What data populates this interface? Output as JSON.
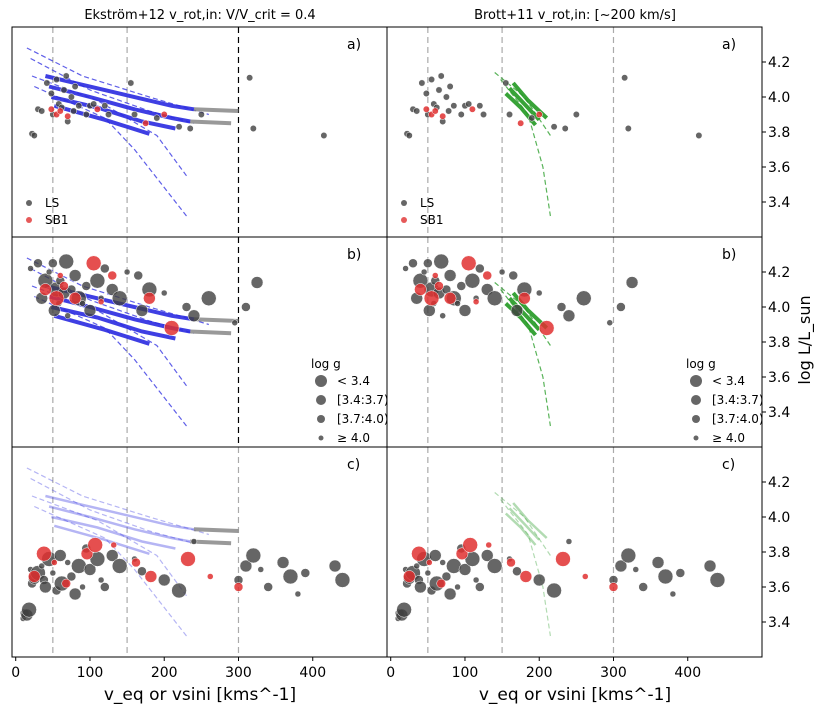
{
  "chart_data": {
    "type": "scatter",
    "titles": {
      "left": "Ekström+12 v_rot,in: V/V_crit = 0.4",
      "right": "Brott+11 v_rot,in: [~200 km/s]"
    },
    "xlabel": "v_eq or vsini [kms^-1]",
    "ylabel": "log L/L_sun",
    "xlim": [
      -5,
      500
    ],
    "ylim": [
      3.2,
      4.4
    ],
    "x_ticks": [
      "0",
      "100",
      "200",
      "300",
      "400"
    ],
    "y_ticks": [
      "3.4",
      "3.6",
      "3.8",
      "4.0",
      "4.2"
    ],
    "vlines": [
      50,
      150,
      300
    ],
    "panel_labels": [
      "a)",
      "b)",
      "c)"
    ],
    "legend_top": [
      "LS",
      "SB1"
    ],
    "legend_logg_title": "log g",
    "legend_logg": [
      "< 3.4",
      "[3.4:3.7)",
      "[3.7:4.0)",
      "≥ 4.0"
    ],
    "colors": {
      "ls": "#404040",
      "sb1": "#e03030",
      "ekstrom": "#2a2ae0",
      "brott": "#229922",
      "grey": "#808080"
    },
    "series": {
      "a_LS": [
        [
          22,
          3.79
        ],
        [
          25,
          3.78
        ],
        [
          30,
          3.93
        ],
        [
          35,
          3.92
        ],
        [
          42,
          4.08
        ],
        [
          48,
          4.02
        ],
        [
          50,
          3.9
        ],
        [
          55,
          4.1
        ],
        [
          58,
          3.96
        ],
        [
          62,
          3.94
        ],
        [
          65,
          4.04
        ],
        [
          68,
          4.12
        ],
        [
          70,
          3.86
        ],
        [
          75,
          4.0
        ],
        [
          78,
          3.92
        ],
        [
          80,
          4.06
        ],
        [
          85,
          3.95
        ],
        [
          95,
          3.9
        ],
        [
          100,
          3.95
        ],
        [
          105,
          3.96
        ],
        [
          120,
          3.95
        ],
        [
          125,
          3.9
        ],
        [
          155,
          4.08
        ],
        [
          160,
          3.9
        ],
        [
          190,
          3.88
        ],
        [
          220,
          3.83
        ],
        [
          235,
          3.82
        ],
        [
          250,
          3.9
        ],
        [
          315,
          4.11
        ],
        [
          320,
          3.82
        ],
        [
          415,
          3.78
        ]
      ],
      "a_SB1": [
        [
          48,
          3.93
        ],
        [
          55,
          3.9
        ],
        [
          60,
          3.92
        ],
        [
          70,
          3.89
        ],
        [
          110,
          3.93
        ],
        [
          175,
          3.85
        ],
        [
          200,
          3.9
        ]
      ],
      "b_LS": [
        [
          20,
          4.22
        ],
        [
          30,
          4.25
        ],
        [
          35,
          4.05
        ],
        [
          40,
          4.15
        ],
        [
          45,
          4.2
        ],
        [
          50,
          4.25
        ],
        [
          52,
          3.98
        ],
        [
          55,
          4.1
        ],
        [
          58,
          4.02
        ],
        [
          60,
          4.15
        ],
        [
          65,
          4.08
        ],
        [
          68,
          4.26
        ],
        [
          70,
          3.95
        ],
        [
          75,
          4.1
        ],
        [
          80,
          4.18
        ],
        [
          85,
          4.05
        ],
        [
          90,
          4.02
        ],
        [
          95,
          4.12
        ],
        [
          100,
          3.98
        ],
        [
          110,
          4.15
        ],
        [
          115,
          4.05
        ],
        [
          120,
          4.22
        ],
        [
          130,
          4.1
        ],
        [
          140,
          4.05
        ],
        [
          150,
          4.2
        ],
        [
          165,
          4.18
        ],
        [
          170,
          3.98
        ],
        [
          180,
          4.1
        ],
        [
          200,
          4.08
        ],
        [
          230,
          4.0
        ],
        [
          240,
          3.95
        ],
        [
          260,
          4.05
        ],
        [
          295,
          3.91
        ],
        [
          310,
          4.0
        ],
        [
          325,
          4.14
        ]
      ],
      "b_SB1": [
        [
          40,
          4.1
        ],
        [
          55,
          4.05
        ],
        [
          60,
          4.18
        ],
        [
          65,
          4.12
        ],
        [
          80,
          4.05
        ],
        [
          105,
          4.25
        ],
        [
          115,
          4.03
        ],
        [
          130,
          4.18
        ],
        [
          180,
          4.05
        ],
        [
          210,
          3.88
        ]
      ],
      "c_LS": [
        [
          10,
          3.42
        ],
        [
          12,
          3.45
        ],
        [
          15,
          3.44
        ],
        [
          18,
          3.47
        ],
        [
          20,
          3.7
        ],
        [
          22,
          3.62
        ],
        [
          25,
          3.65
        ],
        [
          30,
          3.68
        ],
        [
          35,
          3.72
        ],
        [
          38,
          3.64
        ],
        [
          40,
          3.6
        ],
        [
          45,
          3.76
        ],
        [
          50,
          3.68
        ],
        [
          55,
          3.58
        ],
        [
          60,
          3.78
        ],
        [
          62,
          3.62
        ],
        [
          70,
          3.74
        ],
        [
          75,
          3.66
        ],
        [
          80,
          3.56
        ],
        [
          85,
          3.72
        ],
        [
          90,
          3.6
        ],
        [
          95,
          3.82
        ],
        [
          100,
          3.7
        ],
        [
          110,
          3.76
        ],
        [
          115,
          3.64
        ],
        [
          120,
          3.6
        ],
        [
          130,
          3.78
        ],
        [
          140,
          3.72
        ],
        [
          160,
          3.76
        ],
        [
          170,
          3.69
        ],
        [
          200,
          3.64
        ],
        [
          220,
          3.58
        ],
        [
          240,
          3.86
        ],
        [
          300,
          3.64
        ],
        [
          310,
          3.72
        ],
        [
          320,
          3.78
        ],
        [
          330,
          3.7
        ],
        [
          340,
          3.6
        ],
        [
          360,
          3.74
        ],
        [
          370,
          3.66
        ],
        [
          380,
          3.56
        ],
        [
          390,
          3.68
        ],
        [
          430,
          3.72
        ],
        [
          440,
          3.64
        ]
      ],
      "c_SB1": [
        [
          25,
          3.66
        ],
        [
          38,
          3.79
        ],
        [
          52,
          3.74
        ],
        [
          68,
          3.62
        ],
        [
          96,
          3.79
        ],
        [
          107,
          3.84
        ],
        [
          132,
          3.84
        ],
        [
          162,
          3.74
        ],
        [
          182,
          3.66
        ],
        [
          232,
          3.76
        ],
        [
          262,
          3.66
        ],
        [
          300,
          3.6
        ]
      ],
      "ek_bold": [
        [
          [
            40,
            4.12
          ],
          [
            90,
            4.07
          ],
          [
            150,
            4.01
          ],
          [
            210,
            3.95
          ],
          [
            240,
            3.93
          ]
        ],
        [
          [
            45,
            4.06
          ],
          [
            100,
            4.0
          ],
          [
            160,
            3.93
          ],
          [
            210,
            3.88
          ],
          [
            235,
            3.86
          ]
        ],
        [
          [
            48,
            4.0
          ],
          [
            110,
            3.94
          ],
          [
            170,
            3.86
          ],
          [
            215,
            3.82
          ]
        ],
        [
          [
            52,
            3.95
          ],
          [
            120,
            3.87
          ],
          [
            180,
            3.79
          ]
        ]
      ],
      "ek_grey": [
        [
          [
            240,
            3.93
          ],
          [
            300,
            3.92
          ]
        ],
        [
          [
            235,
            3.86
          ],
          [
            290,
            3.85
          ]
        ]
      ],
      "ek_dashed": [
        [
          [
            15,
            4.28
          ],
          [
            90,
            4.12
          ],
          [
            180,
            4.0
          ],
          [
            260,
            3.9
          ]
        ],
        [
          [
            20,
            4.22
          ],
          [
            100,
            4.04
          ],
          [
            180,
            3.92
          ],
          [
            240,
            3.85
          ]
        ],
        [
          [
            22,
            4.12
          ],
          [
            110,
            3.98
          ],
          [
            190,
            3.78
          ],
          [
            230,
            3.55
          ]
        ],
        [
          [
            25,
            4.06
          ],
          [
            120,
            3.88
          ],
          [
            160,
            3.7
          ],
          [
            230,
            3.32
          ]
        ]
      ],
      "br_bold": [
        [
          [
            165,
            4.08
          ],
          [
            185,
            3.98
          ],
          [
            210,
            3.88
          ]
        ],
        [
          [
            160,
            4.05
          ],
          [
            180,
            3.96
          ],
          [
            200,
            3.87
          ]
        ],
        [
          [
            155,
            4.02
          ],
          [
            175,
            3.94
          ],
          [
            195,
            3.84
          ]
        ]
      ],
      "br_dashed": [
        [
          [
            140,
            4.14
          ],
          [
            180,
            4.0
          ],
          [
            215,
            3.78
          ]
        ],
        [
          [
            148,
            4.1
          ],
          [
            185,
            3.9
          ],
          [
            205,
            3.6
          ],
          [
            215,
            3.32
          ]
        ]
      ]
    }
  }
}
